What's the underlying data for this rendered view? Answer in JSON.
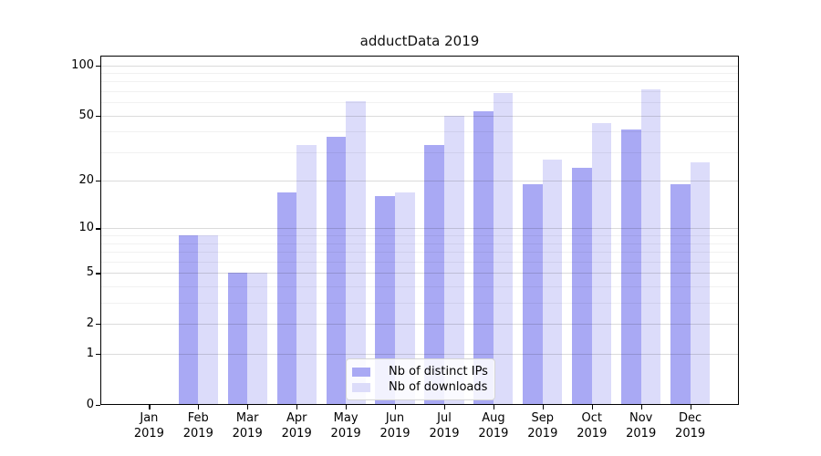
{
  "title": "adductData 2019",
  "chart_data": {
    "type": "bar",
    "title": "adductData 2019",
    "categories": [
      "Jan",
      "Feb",
      "Mar",
      "Apr",
      "May",
      "Jun",
      "Jul",
      "Aug",
      "Sep",
      "Oct",
      "Nov",
      "Dec"
    ],
    "category_year_suffix": "2019",
    "series": [
      {
        "name": "Nb of distinct IPs",
        "color": "#a9a9f4",
        "values": [
          0,
          9,
          5,
          17,
          37,
          16,
          33,
          53,
          19,
          24,
          41,
          19
        ]
      },
      {
        "name": "Nb of downloads",
        "color": "#dcdcfa",
        "values": [
          0,
          9,
          5,
          33,
          61,
          17,
          50,
          68,
          27,
          45,
          72,
          26
        ]
      }
    ],
    "y_scale": "log1p",
    "ylim": [
      0,
      114
    ],
    "y_ticks": [
      0,
      1,
      2,
      5,
      10,
      20,
      50,
      100
    ],
    "y_minor_ticks": [
      3,
      4,
      6,
      7,
      8,
      9,
      30,
      40,
      60,
      70,
      80,
      90
    ],
    "grid": true,
    "legend_position": "lower center"
  }
}
